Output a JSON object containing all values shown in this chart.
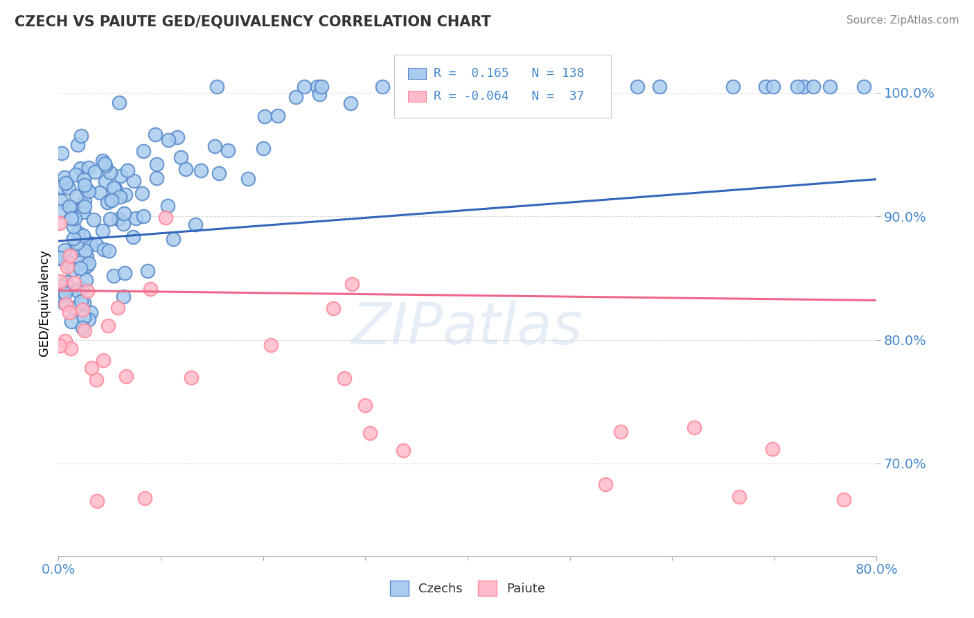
{
  "title": "CZECH VS PAIUTE GED/EQUIVALENCY CORRELATION CHART",
  "source": "Source: ZipAtlas.com",
  "ylabel": "GED/Equivalency",
  "ytick_values": [
    0.7,
    0.8,
    0.9,
    1.0
  ],
  "xlim": [
    0.0,
    0.8
  ],
  "ylim": [
    0.625,
    1.035
  ],
  "czech_R": 0.165,
  "czech_N": 138,
  "paiute_R": -0.064,
  "paiute_N": 37,
  "blue_scatter_face": "#AACCEE",
  "blue_scatter_edge": "#5588CC",
  "pink_scatter_face": "#FFBBCC",
  "pink_scatter_edge": "#FF8899",
  "blue_line_color": "#3366BB",
  "pink_line_color": "#EE6688",
  "tick_color": "#4488CC",
  "legend_czechs": "Czechs",
  "legend_paiute": "Paiute",
  "czech_trend_y0": 0.88,
  "czech_trend_y1": 0.93,
  "paiute_trend_y0": 0.84,
  "paiute_trend_y1": 0.832
}
